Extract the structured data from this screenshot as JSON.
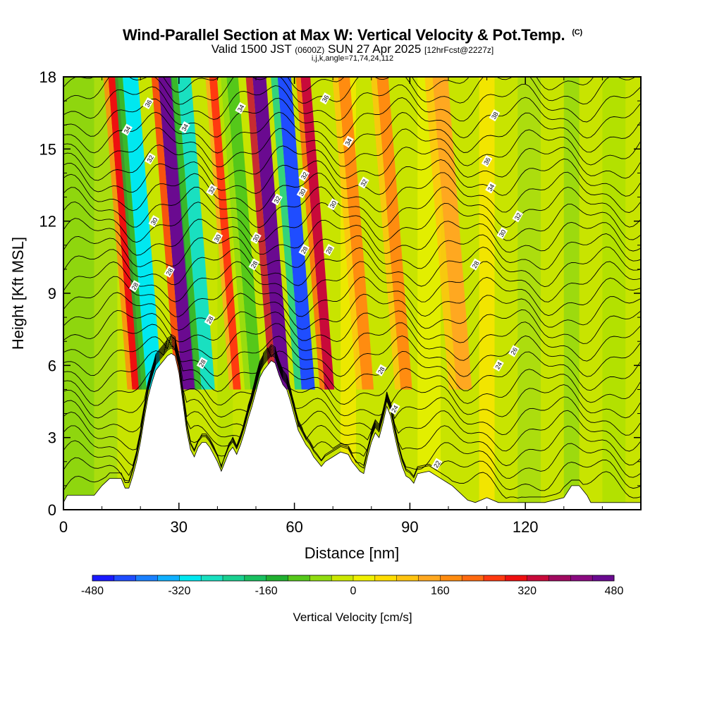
{
  "title": {
    "main": "Wind-Parallel Section at Max W: Vertical Velocity & Pot.Temp.",
    "mark": "(C)",
    "valid": "Valid 1500 JST",
    "zulu": "(0600Z)",
    "date": "SUN 27 Apr 2025",
    "fcst": "[12hrFcst@2227z]",
    "indices": "i,j,k,angle=71,74,24,112"
  },
  "chart_data": {
    "type": "heatmap",
    "xlabel": "Distance [nm]",
    "ylabel": "Height [Kft MSL]",
    "xlim": [
      0,
      150
    ],
    "ylim": [
      0,
      18
    ],
    "xticks": [
      0,
      30,
      60,
      90,
      120
    ],
    "yticks": [
      0,
      3,
      6,
      9,
      12,
      15,
      18
    ],
    "grid": false,
    "colorbar": {
      "label": "Vertical Velocity [cm/s]",
      "ticks": [
        "-480",
        "-320",
        "-160",
        "0",
        "160",
        "320",
        "480"
      ],
      "colors": [
        "#1a1aff",
        "#1f4dff",
        "#1a80ff",
        "#10b0ff",
        "#00e8f0",
        "#19e0c0",
        "#1ad090",
        "#19c060",
        "#20b030",
        "#55c81a",
        "#90dc10",
        "#cce800",
        "#f0f000",
        "#ffdd00",
        "#ffc410",
        "#ffa820",
        "#ff8c10",
        "#ff6a10",
        "#ff3a10",
        "#ee1010",
        "#c80a3a",
        "#a00a60",
        "#8a0a80",
        "#6a0a90"
      ]
    },
    "velocity_bands": [
      {
        "x": 18,
        "w": 2.5,
        "value": 240
      },
      {
        "x": 22.5,
        "w": 4,
        "value": -360
      },
      {
        "x": 31.5,
        "w": 3.5,
        "value": 420
      },
      {
        "x": 36.5,
        "w": 3.5,
        "value": -300
      },
      {
        "x": 44,
        "w": 2,
        "value": 200
      },
      {
        "x": 49,
        "w": 3,
        "value": -160
      },
      {
        "x": 56,
        "w": 3.5,
        "value": 520
      },
      {
        "x": 62.5,
        "w": 3.5,
        "value": -460
      },
      {
        "x": 68,
        "w": 2.5,
        "value": 300
      },
      {
        "x": 78,
        "w": 3,
        "value": 120
      },
      {
        "x": 88,
        "w": 3,
        "value": 140
      },
      {
        "x": 103,
        "w": 4,
        "value": 80
      }
    ],
    "theta_contours": [
      22,
      24,
      26,
      28,
      30,
      32,
      34,
      36,
      38
    ],
    "contour_labels": [
      {
        "text": "22",
        "x": 97,
        "y": 1.9
      },
      {
        "text": "24",
        "x": 86,
        "y": 4.2
      },
      {
        "text": "24",
        "x": 113,
        "y": 6.0
      },
      {
        "text": "26",
        "x": 117,
        "y": 6.6
      },
      {
        "text": "28",
        "x": 36,
        "y": 6.1
      },
      {
        "text": "28",
        "x": 38,
        "y": 7.9
      },
      {
        "text": "28",
        "x": 18.5,
        "y": 9.3
      },
      {
        "text": "28",
        "x": 27.5,
        "y": 9.9
      },
      {
        "text": "28",
        "x": 49.5,
        "y": 10.2
      },
      {
        "text": "28",
        "x": 62.5,
        "y": 10.8
      },
      {
        "text": "28",
        "x": 69,
        "y": 10.8
      },
      {
        "text": "28",
        "x": 82.5,
        "y": 5.8
      },
      {
        "text": "28",
        "x": 107,
        "y": 10.2
      },
      {
        "text": "30",
        "x": 23.5,
        "y": 12.0
      },
      {
        "text": "30",
        "x": 40,
        "y": 11.3
      },
      {
        "text": "30",
        "x": 50,
        "y": 11.3
      },
      {
        "text": "30",
        "x": 62,
        "y": 13.2
      },
      {
        "text": "30",
        "x": 70,
        "y": 12.7
      },
      {
        "text": "30",
        "x": 114,
        "y": 11.5
      },
      {
        "text": "32",
        "x": 22.5,
        "y": 14.6
      },
      {
        "text": "32",
        "x": 38.5,
        "y": 13.3
      },
      {
        "text": "32",
        "x": 55.5,
        "y": 12.9
      },
      {
        "text": "32",
        "x": 62.5,
        "y": 13.9
      },
      {
        "text": "32",
        "x": 78,
        "y": 13.6
      },
      {
        "text": "32",
        "x": 118,
        "y": 12.2
      },
      {
        "text": "34",
        "x": 16.5,
        "y": 15.8
      },
      {
        "text": "34",
        "x": 31.5,
        "y": 15.9
      },
      {
        "text": "34",
        "x": 46,
        "y": 16.7
      },
      {
        "text": "34",
        "x": 74,
        "y": 15.3
      },
      {
        "text": "34",
        "x": 111,
        "y": 13.4
      },
      {
        "text": "36",
        "x": 22,
        "y": 16.9
      },
      {
        "text": "36",
        "x": 68,
        "y": 17.1
      },
      {
        "text": "36",
        "x": 110,
        "y": 14.5
      },
      {
        "text": "38",
        "x": 112,
        "y": 16.4
      }
    ],
    "terrain": [
      [
        0,
        0.3
      ],
      [
        1,
        0.6
      ],
      [
        8,
        0.6
      ],
      [
        10,
        1.0
      ],
      [
        12,
        1.3
      ],
      [
        15,
        1.3
      ],
      [
        16,
        0.9
      ],
      [
        17,
        0.9
      ],
      [
        18,
        1.4
      ],
      [
        19,
        2.0
      ],
      [
        20,
        2.8
      ],
      [
        21,
        3.8
      ],
      [
        22,
        4.7
      ],
      [
        23,
        5.3
      ],
      [
        24,
        5.8
      ],
      [
        25,
        6.0
      ],
      [
        26,
        6.2
      ],
      [
        27,
        6.4
      ],
      [
        28,
        6.5
      ],
      [
        29,
        6.4
      ],
      [
        30,
        5.7
      ],
      [
        31,
        4.5
      ],
      [
        32,
        3.3
      ],
      [
        33,
        2.5
      ],
      [
        34,
        2.2
      ],
      [
        35,
        2.6
      ],
      [
        36,
        2.8
      ],
      [
        37,
        2.8
      ],
      [
        38,
        2.6
      ],
      [
        39,
        2.3
      ],
      [
        40,
        2.0
      ],
      [
        41,
        1.6
      ],
      [
        42,
        2.0
      ],
      [
        43,
        2.4
      ],
      [
        44,
        2.6
      ],
      [
        45,
        2.3
      ],
      [
        46,
        2.7
      ],
      [
        47,
        3.2
      ],
      [
        48,
        3.8
      ],
      [
        49,
        4.3
      ],
      [
        50,
        4.9
      ],
      [
        51,
        5.5
      ],
      [
        52,
        5.8
      ],
      [
        53,
        6.0
      ],
      [
        54,
        6.2
      ],
      [
        55,
        6.1
      ],
      [
        56,
        5.6
      ],
      [
        57,
        5.2
      ],
      [
        58,
        5.0
      ],
      [
        59,
        4.5
      ],
      [
        60,
        3.9
      ],
      [
        61,
        3.3
      ],
      [
        62,
        3.0
      ],
      [
        63,
        2.7
      ],
      [
        64,
        2.5
      ],
      [
        65,
        2.2
      ],
      [
        66,
        2.0
      ],
      [
        67,
        1.8
      ],
      [
        68,
        2.0
      ],
      [
        70,
        2.2
      ],
      [
        72,
        2.4
      ],
      [
        74,
        2.3
      ],
      [
        75,
        2.0
      ],
      [
        76,
        1.8
      ],
      [
        77,
        1.6
      ],
      [
        78,
        1.5
      ],
      [
        79,
        2.2
      ],
      [
        80,
        2.8
      ],
      [
        81,
        3.2
      ],
      [
        82,
        3.0
      ],
      [
        83,
        3.6
      ],
      [
        84,
        4.3
      ],
      [
        85,
        3.9
      ],
      [
        86,
        3.1
      ],
      [
        87,
        2.4
      ],
      [
        88,
        1.8
      ],
      [
        89,
        1.4
      ],
      [
        90,
        1.3
      ],
      [
        91,
        1.1
      ],
      [
        92,
        1.5
      ],
      [
        95,
        1.6
      ],
      [
        98,
        1.3
      ],
      [
        101,
        1.0
      ],
      [
        103,
        0.7
      ],
      [
        105,
        0.4
      ],
      [
        107,
        0.3
      ],
      [
        110,
        0.5
      ],
      [
        113,
        0.3
      ],
      [
        125,
        0.3
      ],
      [
        130,
        0.5
      ],
      [
        132,
        1.0
      ],
      [
        134,
        1.0
      ],
      [
        136,
        0.6
      ],
      [
        137,
        0.3
      ],
      [
        140,
        0.3
      ],
      [
        142,
        0.3
      ],
      [
        146,
        0.3
      ],
      [
        150,
        0.3
      ]
    ]
  }
}
